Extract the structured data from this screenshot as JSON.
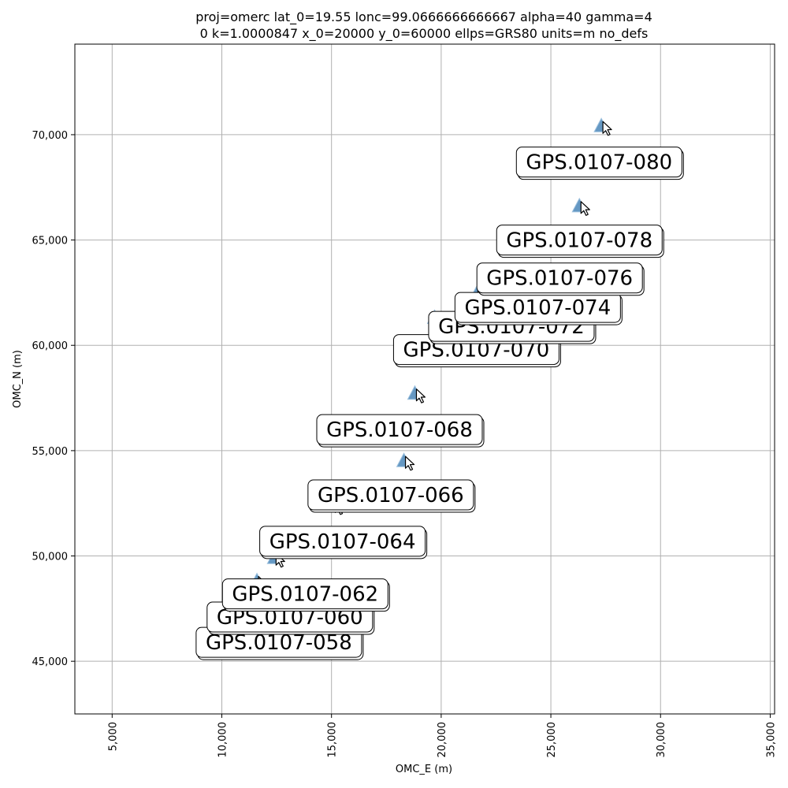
{
  "chart_data": {
    "type": "scatter",
    "title_lines": [
      "proj=omerc lat_0=19.55 lonc=99.0666666666667 alpha=40 gamma=4",
      "0 k=1.0000847 x_0=20000 y_0=60000 ellps=GRS80 units=m no_defs"
    ],
    "xlabel": "OMC_E (m)",
    "ylabel": "OMC_N (m)",
    "xlim": [
      3300,
      35200
    ],
    "ylim": [
      42500,
      74300
    ],
    "xticks": [
      5000,
      10000,
      15000,
      20000,
      25000,
      30000,
      35000
    ],
    "xtick_labels": [
      "5,000",
      "10,000",
      "15,000",
      "20,000",
      "25,000",
      "30,000",
      "35,000"
    ],
    "yticks": [
      45000,
      50000,
      55000,
      60000,
      65000,
      70000
    ],
    "ytick_labels": [
      "45,000",
      "50,000",
      "55,000",
      "60,000",
      "65,000",
      "70,000"
    ],
    "grid": true,
    "marker_color": "#4a86b8",
    "points": [
      {
        "label": "GPS.0107-058",
        "x": 10500,
        "y": 48100,
        "label_x": 12600,
        "label_y": 45900
      },
      {
        "label": "GPS.0107-060",
        "x": 11000,
        "y": 48500,
        "label_x": 13100,
        "label_y": 47100
      },
      {
        "label": "GPS.0107-062",
        "x": 11600,
        "y": 48800,
        "label_x": 13800,
        "label_y": 48200
      },
      {
        "label": "GPS.0107-064",
        "x": 12400,
        "y": 49900,
        "label_x": 15500,
        "label_y": 50700
      },
      {
        "label": "GPS.0107-066",
        "x": 15100,
        "y": 52400,
        "label_x": 17700,
        "label_y": 52900
      },
      {
        "label": "GPS.0107-068",
        "x": 18300,
        "y": 54500,
        "label_x": 18100,
        "label_y": 56000
      },
      {
        "label": "GPS.0107-070",
        "x": 18800,
        "y": 57700,
        "label_x": 21600,
        "label_y": 59800
      },
      {
        "label": "GPS.0107-072",
        "x": 19700,
        "y": 61300,
        "label_x": 23200,
        "label_y": 60900
      },
      {
        "label": "GPS.0107-074",
        "x": 21600,
        "y": 62400,
        "label_x": 24400,
        "label_y": 61800
      },
      {
        "label": "GPS.0107-076",
        "x": 23600,
        "y": 63300,
        "label_x": 25400,
        "label_y": 63200
      },
      {
        "label": "GPS.0107-078",
        "x": 26300,
        "y": 66600,
        "label_x": 26300,
        "label_y": 65000
      },
      {
        "label": "GPS.0107-080",
        "x": 27300,
        "y": 70400,
        "label_x": 27200,
        "label_y": 68700
      }
    ]
  }
}
